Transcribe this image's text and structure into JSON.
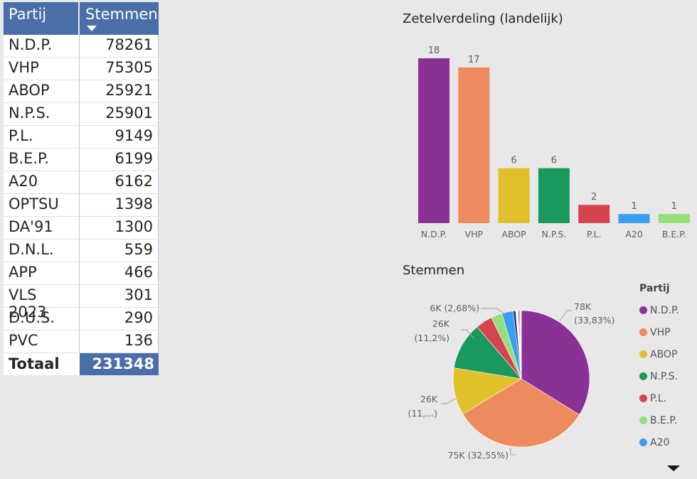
{
  "table": {
    "header": {
      "party": "Partij",
      "votes": "Stemmen",
      "sort_icon": "sort-descending-icon"
    },
    "rows": [
      {
        "party": "N.D.P.",
        "votes": "78261"
      },
      {
        "party": "VHP",
        "votes": "75305"
      },
      {
        "party": "ABOP",
        "votes": "25921"
      },
      {
        "party": "N.P.S.",
        "votes": "25901"
      },
      {
        "party": "P.L.",
        "votes": "9149"
      },
      {
        "party": "B.E.P.",
        "votes": "6199"
      },
      {
        "party": "A20",
        "votes": "6162"
      },
      {
        "party": "OPTSU",
        "votes": "1398"
      },
      {
        "party": "DA'91",
        "votes": "1300"
      },
      {
        "party": "D.N.L.",
        "votes": "559"
      },
      {
        "party": "APP",
        "votes": "466"
      },
      {
        "party": "VLS 2023",
        "votes": "301"
      },
      {
        "party": "D.U.S.",
        "votes": "290"
      },
      {
        "party": "PVC",
        "votes": "136"
      }
    ],
    "total": {
      "label": "Totaal",
      "value": "231348"
    }
  },
  "chart_data": [
    {
      "type": "bar",
      "title": "Zetelverdeling (landelijk)",
      "categories": [
        "N.D.P.",
        "VHP",
        "ABOP",
        "N.P.S.",
        "P.L.",
        "A20",
        "B.E.P."
      ],
      "values": [
        18,
        17,
        6,
        6,
        2,
        1,
        1
      ],
      "colors": [
        "#8a3196",
        "#ee8b5e",
        "#e0c12c",
        "#179a5c",
        "#d84350",
        "#3a9ff0",
        "#95e07a"
      ],
      "ylim": [
        0,
        18
      ],
      "data_labels": true,
      "grid": false
    },
    {
      "type": "pie",
      "title": "Stemmen",
      "legend_title": "Partij",
      "legend_position": "right",
      "slices": [
        {
          "label": "N.D.P.",
          "value": 78261,
          "color": "#8a3196"
        },
        {
          "label": "VHP",
          "value": 75305,
          "color": "#ee8b5e"
        },
        {
          "label": "ABOP",
          "value": 25921,
          "color": "#e0c12c"
        },
        {
          "label": "N.P.S.",
          "value": 25901,
          "color": "#179a5c"
        },
        {
          "label": "P.L.",
          "value": 9149,
          "color": "#d84350"
        },
        {
          "label": "B.E.P.",
          "value": 6199,
          "color": "#95e07a"
        },
        {
          "label": "A20",
          "value": 6162,
          "color": "#3a9ff0"
        },
        {
          "label": "OPTSU",
          "value": 1398,
          "color": "#24346e"
        },
        {
          "label": "DA'91",
          "value": 1300,
          "color": "#ffffff"
        },
        {
          "label": "D.N.L.",
          "value": 559,
          "color": "#5a2a6a"
        },
        {
          "label": "APP",
          "value": 466,
          "color": "#c26a3c"
        },
        {
          "label": "VLS 2023",
          "value": 301,
          "color": "#b09028"
        },
        {
          "label": "D.U.S.",
          "value": 290,
          "color": "#0e6a44"
        },
        {
          "label": "PVC",
          "value": 136,
          "color": "#a02a36"
        }
      ],
      "data_labels": [
        {
          "line1": "78K",
          "line2": "(33,83%)"
        },
        {
          "line1": "75K (32,55%)",
          "line2": ""
        },
        {
          "line1": "26K",
          "line2": "(11,...)"
        },
        {
          "line1": "26K",
          "line2": "(11,2%)"
        },
        {
          "line1": "6K (2,68%)",
          "line2": ""
        }
      ],
      "legend_items": [
        "N.D.P.",
        "VHP",
        "ABOP",
        "N.P.S.",
        "P.L.",
        "B.E.P.",
        "A20"
      ]
    }
  ],
  "scroll_icon": "scroll-down-arrow-icon"
}
